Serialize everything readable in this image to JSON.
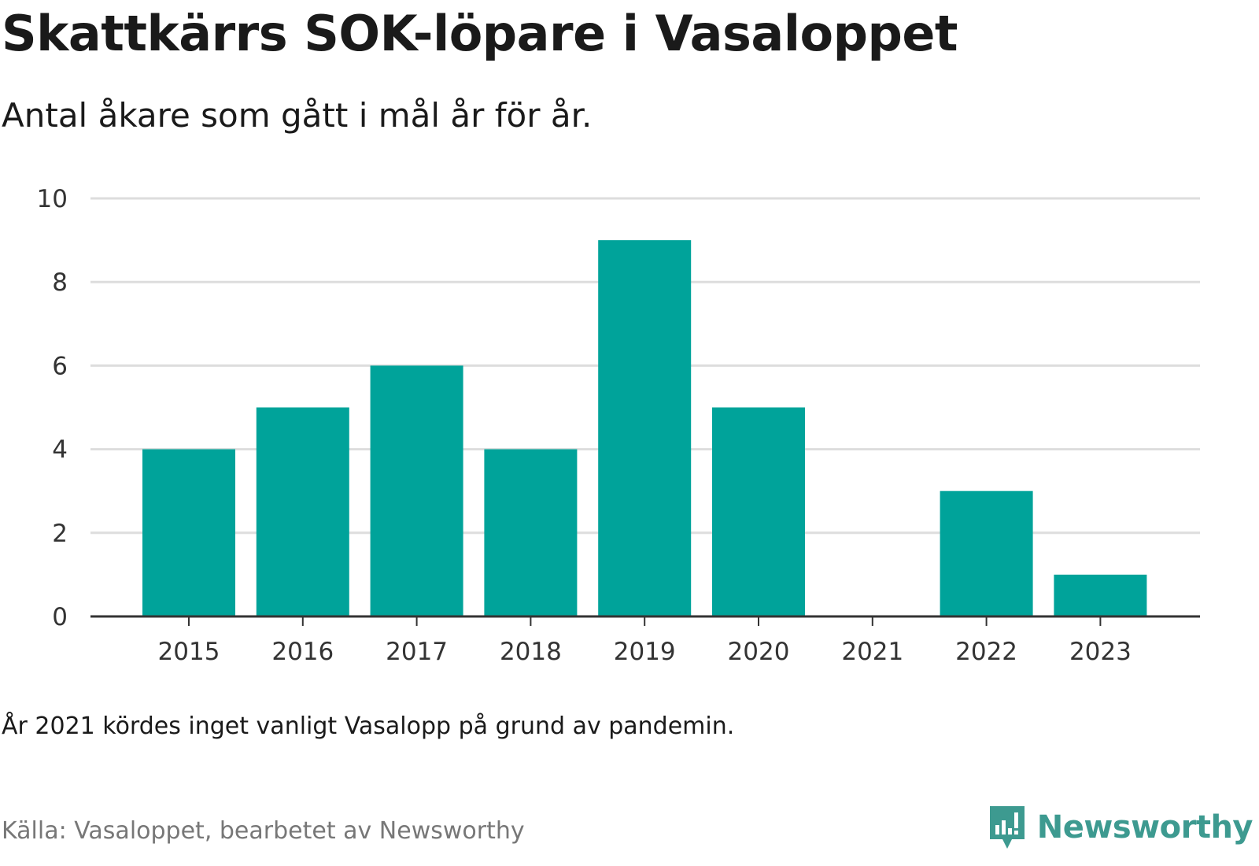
{
  "title": "Skattkärrs SOK-löpare i Vasaloppet",
  "subtitle": "Antal åkare som gått i mål år för år.",
  "note": "År 2021 kördes inget vanligt Vasalopp på grund av pandemin.",
  "source": "Källa: Vasaloppet, bearbetet av Newsworthy",
  "brand": {
    "name": "Newsworthy",
    "icon": "newsworthy-logo-icon",
    "color": "#3d9a90"
  },
  "chart_data": {
    "type": "bar",
    "categories": [
      "2015",
      "2016",
      "2017",
      "2018",
      "2019",
      "2020",
      "2021",
      "2022",
      "2023"
    ],
    "values": [
      4,
      5,
      6,
      4,
      9,
      5,
      0,
      3,
      1
    ],
    "title": "Skattkärrs SOK-löpare i Vasaloppet",
    "subtitle": "Antal åkare som gått i mål år för år.",
    "xlabel": "",
    "ylabel": "",
    "ylim": [
      0,
      10
    ],
    "yticks": [
      0,
      2,
      4,
      6,
      8,
      10
    ],
    "grid": true,
    "bar_color": "#00a39a",
    "grid_color": "#dddddd",
    "axis_color": "#333333"
  }
}
